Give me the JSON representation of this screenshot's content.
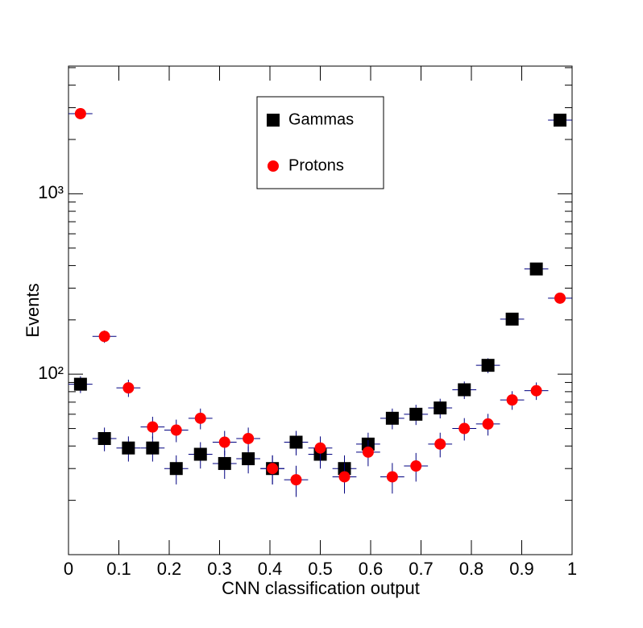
{
  "chart_data": {
    "type": "scatter",
    "xlabel": "CNN classification output",
    "ylabel": "Events",
    "log_y": true,
    "x": [
      0.0238,
      0.0714,
      0.119,
      0.167,
      0.214,
      0.262,
      0.31,
      0.357,
      0.405,
      0.452,
      0.5,
      0.548,
      0.595,
      0.643,
      0.69,
      0.738,
      0.786,
      0.833,
      0.881,
      0.929,
      0.976
    ],
    "x_error": 0.0238,
    "series": [
      {
        "name": "Gammas",
        "color": "#000000",
        "marker": "square",
        "error_color": "#000080",
        "values": [
          88,
          44,
          39,
          39,
          30,
          36,
          32,
          34,
          30,
          42,
          36,
          30,
          41,
          57,
          60,
          65,
          82,
          112,
          202,
          383,
          2560
        ],
        "errors": [
          9.4,
          6.6,
          6.2,
          6.2,
          5.5,
          6,
          5.7,
          5.8,
          5.5,
          6.5,
          6,
          5.5,
          6.4,
          7.5,
          7.7,
          8.1,
          9.1,
          10.6,
          14.2,
          19.6,
          50.6
        ]
      },
      {
        "name": "Protons",
        "color": "#ff0000",
        "marker": "circle",
        "error_color": "#000080",
        "values": [
          2780,
          162,
          84,
          51,
          49,
          57,
          42,
          44,
          30,
          26,
          39,
          27,
          37,
          27,
          31,
          41,
          50,
          53,
          72,
          81,
          264
        ],
        "errors": [
          52.7,
          12.7,
          9.2,
          7.1,
          7,
          7.5,
          6.5,
          6.6,
          5.5,
          5.1,
          6.2,
          5.2,
          6.1,
          5.2,
          5.6,
          6.4,
          7.1,
          7.3,
          8.5,
          9,
          16.2
        ]
      }
    ],
    "xlim": [
      0,
      1
    ],
    "xticks": [
      0,
      0.1,
      0.2,
      0.3,
      0.4,
      0.5,
      0.6,
      0.7,
      0.8,
      0.9,
      1
    ],
    "ylim": [
      10,
      5100
    ],
    "yticks": [
      {
        "value": 100,
        "label": "10²"
      },
      {
        "value": 1000,
        "label": "10³"
      }
    ],
    "yminorticks": [
      20,
      30,
      40,
      50,
      60,
      70,
      80,
      90,
      200,
      300,
      400,
      500,
      600,
      700,
      800,
      900,
      2000,
      3000,
      4000,
      5000
    ],
    "legend": "top-center"
  }
}
